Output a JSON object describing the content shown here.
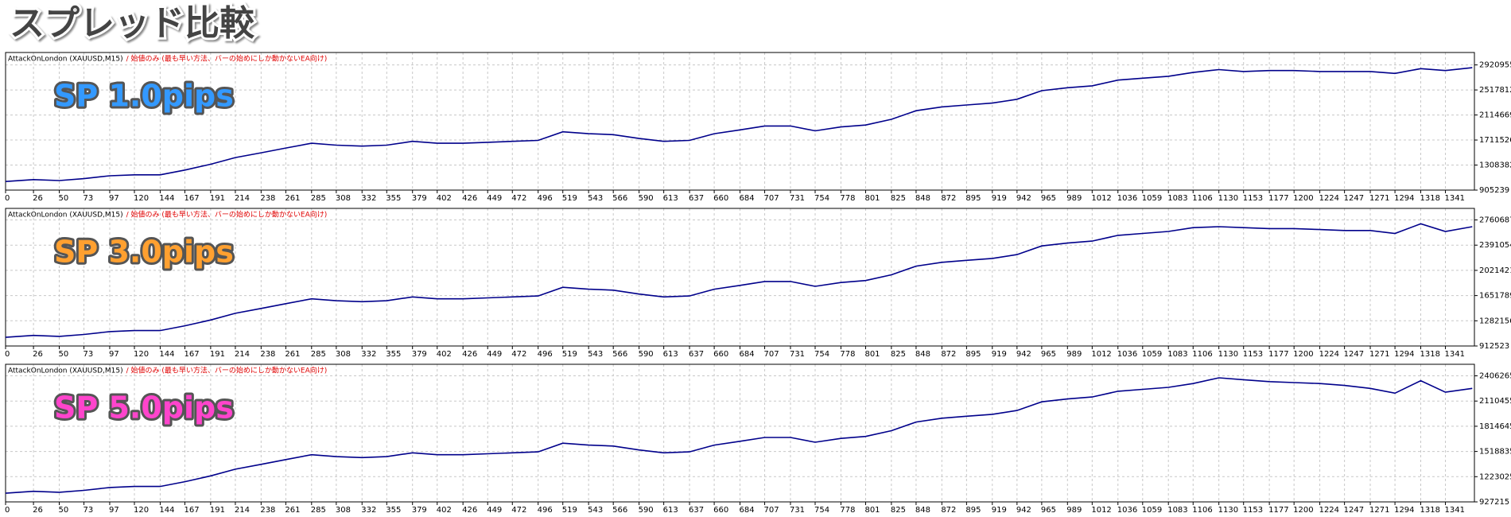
{
  "header": {
    "title": "スプレッド比較"
  },
  "chart_data": [
    {
      "type": "line",
      "title": "AttackOnLondon (XAUUSD,M15)",
      "subtitle": "/ 始値のみ (最も早い方法、バーの始めにしか動かないEA向け)",
      "annotation": "SP 1.0pips",
      "annotation_color": "#3399ff",
      "x": [
        0,
        26,
        50,
        73,
        97,
        120,
        144,
        167,
        191,
        214,
        238,
        261,
        285,
        308,
        332,
        355,
        379,
        402,
        426,
        449,
        472,
        496,
        519,
        543,
        566,
        590,
        613,
        637,
        660,
        684,
        707,
        731,
        754,
        778,
        801,
        825,
        848,
        872,
        895,
        919,
        942,
        965,
        989,
        1012,
        1036,
        1059,
        1083,
        1106,
        1130,
        1153,
        1177,
        1200,
        1224,
        1247,
        1271,
        1294,
        1318,
        1341,
        1366
      ],
      "values": [
        1043800,
        1074600,
        1059200,
        1090000,
        1136200,
        1151600,
        1151600,
        1228600,
        1321000,
        1428800,
        1505800,
        1582800,
        1659800,
        1629000,
        1613600,
        1629000,
        1690600,
        1659800,
        1659800,
        1675200,
        1690600,
        1706000,
        1844600,
        1813800,
        1798400,
        1736800,
        1690600,
        1706000,
        1813800,
        1875400,
        1937000,
        1937000,
        1860000,
        1921600,
        1952400,
        2044800,
        2183400,
        2245000,
        2275800,
        2306600,
        2368200,
        2506800,
        2553000,
        2583800,
        2676200,
        2707000,
        2737800,
        2799400,
        2845600,
        2814800,
        2830200,
        2830200,
        2814800,
        2814800,
        2814800,
        2784000,
        2861000,
        2830200,
        2876400
      ],
      "color": "#00008b",
      "xlim": [
        0,
        1368
      ],
      "ylim": [
        905239,
        3121000
      ],
      "xticks": [
        0,
        26,
        50,
        73,
        97,
        120,
        144,
        167,
        191,
        214,
        238,
        261,
        285,
        308,
        332,
        355,
        379,
        402,
        426,
        449,
        472,
        496,
        519,
        543,
        566,
        590,
        613,
        637,
        660,
        684,
        707,
        731,
        754,
        778,
        801,
        825,
        848,
        872,
        895,
        919,
        942,
        965,
        989,
        1012,
        1036,
        1059,
        1083,
        1106,
        1130,
        1153,
        1177,
        1200,
        1224,
        1247,
        1271,
        1294,
        1318,
        1341
      ],
      "yticks": [
        905239,
        1308382,
        1711526,
        2114669,
        2517812,
        2920955
      ],
      "grid": true
    },
    {
      "type": "line",
      "title": "AttackOnLondon (XAUUSD,M15)",
      "subtitle": "/ 始値のみ (最も早い方法、バーの始めにしか動かないEA向け)",
      "annotation": "SP 3.0pips",
      "annotation_color": "#ffa030",
      "x": [
        0,
        26,
        50,
        73,
        97,
        120,
        144,
        167,
        191,
        214,
        238,
        261,
        285,
        308,
        332,
        355,
        379,
        402,
        426,
        449,
        472,
        496,
        519,
        543,
        566,
        590,
        613,
        637,
        660,
        684,
        707,
        731,
        754,
        778,
        801,
        825,
        848,
        872,
        895,
        919,
        942,
        965,
        989,
        1012,
        1036,
        1059,
        1083,
        1106,
        1130,
        1153,
        1177,
        1200,
        1224,
        1247,
        1271,
        1294,
        1318,
        1341,
        1366
      ],
      "values": [
        1039500,
        1067700,
        1053600,
        1081800,
        1124100,
        1138300,
        1138300,
        1208800,
        1293400,
        1392200,
        1462700,
        1533300,
        1603800,
        1575600,
        1561500,
        1575600,
        1632000,
        1603800,
        1603800,
        1617900,
        1632000,
        1646100,
        1773100,
        1744900,
        1730800,
        1674400,
        1632000,
        1646100,
        1744900,
        1801300,
        1857800,
        1857800,
        1787200,
        1843700,
        1871900,
        1956500,
        2083500,
        2139900,
        2168100,
        2196300,
        2252800,
        2379700,
        2422100,
        2450300,
        2534900,
        2563200,
        2591400,
        2647800,
        2662000,
        2647800,
        2633700,
        2633700,
        2619600,
        2605500,
        2605500,
        2563200,
        2704200,
        2591400,
        2662000
      ],
      "color": "#00008b",
      "xlim": [
        0,
        1368
      ],
      "ylim": [
        912523,
        2930000
      ],
      "xticks": [
        0,
        26,
        50,
        73,
        97,
        120,
        144,
        167,
        191,
        214,
        238,
        261,
        285,
        308,
        332,
        355,
        379,
        402,
        426,
        449,
        472,
        496,
        519,
        543,
        566,
        590,
        613,
        637,
        660,
        684,
        707,
        731,
        754,
        778,
        801,
        825,
        848,
        872,
        895,
        919,
        942,
        965,
        989,
        1012,
        1036,
        1059,
        1083,
        1106,
        1130,
        1153,
        1177,
        1200,
        1224,
        1247,
        1271,
        1294,
        1318,
        1341
      ],
      "yticks": [
        912523,
        1282156,
        1651789,
        2021421,
        2391054,
        2760687
      ],
      "grid": true
    },
    {
      "type": "line",
      "title": "AttackOnLondon (XAUUSD,M15)",
      "subtitle": "/ 始値のみ (最も早い方法、バーの始めにしか動かないEA向け)",
      "annotation": "SP 5.0pips",
      "annotation_color": "#ff44cc",
      "x": [
        0,
        26,
        50,
        73,
        97,
        120,
        144,
        167,
        191,
        214,
        238,
        261,
        285,
        308,
        332,
        355,
        379,
        402,
        426,
        449,
        472,
        496,
        519,
        543,
        566,
        590,
        613,
        637,
        660,
        684,
        707,
        731,
        754,
        778,
        801,
        825,
        848,
        872,
        895,
        919,
        942,
        965,
        989,
        1012,
        1036,
        1059,
        1083,
        1106,
        1130,
        1153,
        1177,
        1200,
        1224,
        1247,
        1271,
        1294,
        1318,
        1341,
        1366
      ],
      "values": [
        1028800,
        1051400,
        1040100,
        1062700,
        1096600,
        1107900,
        1107900,
        1164300,
        1232000,
        1311100,
        1367500,
        1424000,
        1480400,
        1457800,
        1446600,
        1457800,
        1503000,
        1480400,
        1480400,
        1491700,
        1503000,
        1514300,
        1615900,
        1593300,
        1582000,
        1536900,
        1503000,
        1514300,
        1593300,
        1638500,
        1683600,
        1683600,
        1627200,
        1672400,
        1694900,
        1762700,
        1864300,
        1909400,
        1932000,
        1954600,
        1999800,
        2101400,
        2135200,
        2157800,
        2225600,
        2248100,
        2270700,
        2315900,
        2383600,
        2361000,
        2338500,
        2327200,
        2315900,
        2293300,
        2259400,
        2202800,
        2349800,
        2214300,
        2259400
      ],
      "color": "#00008b",
      "xlim": [
        0,
        1368
      ],
      "ylim": [
        927215,
        2541800
      ],
      "xticks": [
        0,
        26,
        50,
        73,
        97,
        120,
        144,
        167,
        191,
        214,
        238,
        261,
        285,
        308,
        332,
        355,
        379,
        402,
        426,
        449,
        472,
        496,
        519,
        543,
        566,
        590,
        613,
        637,
        660,
        684,
        707,
        731,
        754,
        778,
        801,
        825,
        848,
        872,
        895,
        919,
        942,
        965,
        989,
        1012,
        1036,
        1059,
        1083,
        1106,
        1130,
        1153,
        1177,
        1200,
        1224,
        1247,
        1271,
        1294,
        1318,
        1341
      ],
      "yticks": [
        927215,
        1223025,
        1518835,
        1814645,
        2110455,
        2406265
      ],
      "grid": true
    }
  ]
}
